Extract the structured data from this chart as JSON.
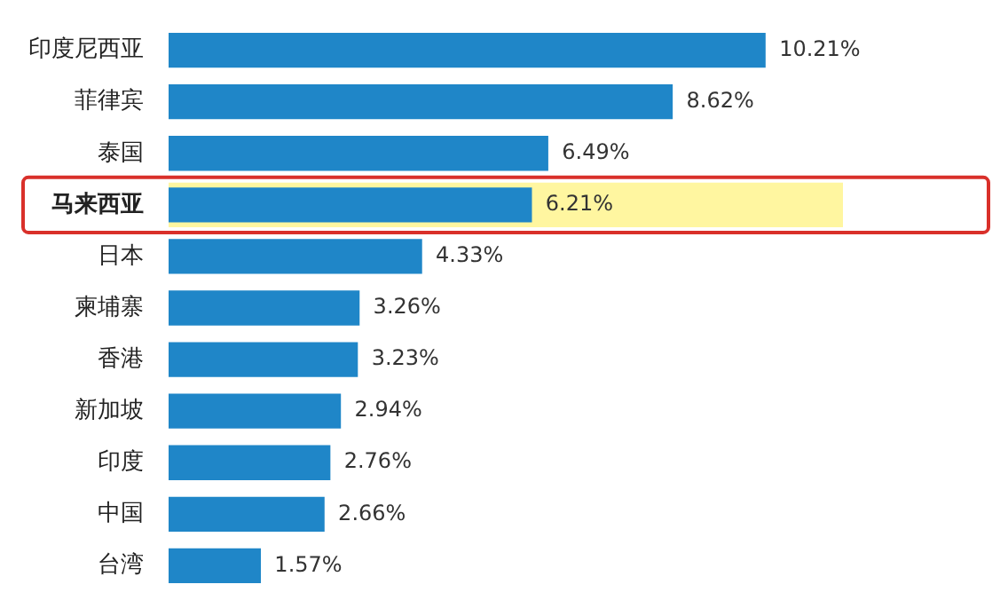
{
  "chart_data": {
    "type": "bar",
    "orientation": "horizontal",
    "categories": [
      "印度尼西亚",
      "菲律宾",
      "泰国",
      "马来西亚",
      "日本",
      "柬埔寨",
      "香港",
      "新加坡",
      "印度",
      "中国",
      "台湾"
    ],
    "values": [
      10.21,
      8.62,
      6.49,
      6.21,
      4.33,
      3.26,
      3.23,
      2.94,
      2.76,
      2.66,
      1.57
    ],
    "value_labels": [
      "10.21%",
      "8.62%",
      "6.49%",
      "6.21%",
      "4.33%",
      "3.26%",
      "3.23%",
      "2.94%",
      "2.76%",
      "2.66%",
      "1.57%"
    ],
    "color": "#1f86c8",
    "tick_labels": "y",
    "legend": false,
    "bands": [
      {
        "axis": "y",
        "from": "马来西亚",
        "to": "马来西亚",
        "color": "#fff6a0"
      }
    ]
  }
}
